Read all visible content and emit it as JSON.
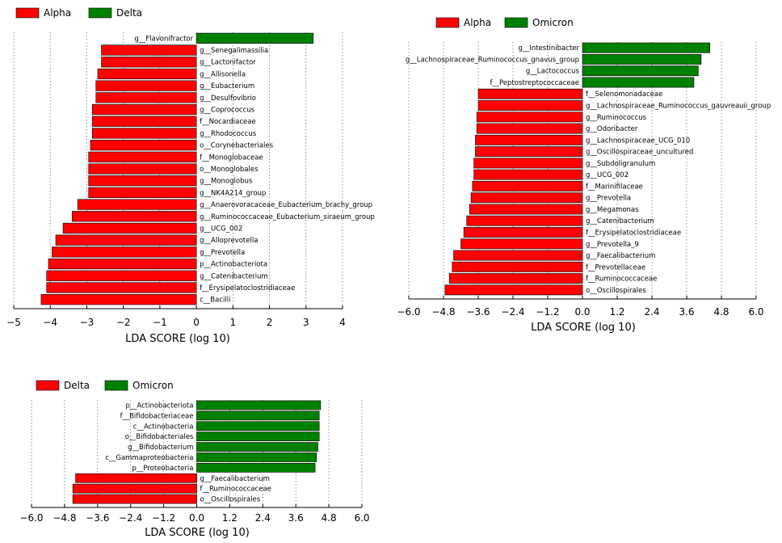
{
  "chart_data": [
    {
      "type": "bar",
      "orientation": "horizontal",
      "xlabel": "LDA SCORE (log 10)",
      "xlim": [
        -5,
        4
      ],
      "xticks": [
        "−5",
        "−4",
        "−3",
        "−2",
        "−1",
        "0",
        "1",
        "2",
        "3",
        "4"
      ],
      "tick_values": [
        -5,
        -4,
        -3,
        -2,
        -1,
        0,
        1,
        2,
        3,
        4
      ],
      "grid": true,
      "legend": [
        {
          "name": "Alpha",
          "color": "#ff0000"
        },
        {
          "name": "Delta",
          "color": "#008000"
        }
      ],
      "bars": [
        {
          "label": "g__Flavonifractor",
          "value": 3.2,
          "group": "Delta"
        },
        {
          "label": "g__Senegalimassilia",
          "value": -2.6,
          "group": "Alpha"
        },
        {
          "label": "g__Lactonifactor",
          "value": -2.6,
          "group": "Alpha"
        },
        {
          "label": "g__Allisonella",
          "value": -2.7,
          "group": "Alpha"
        },
        {
          "label": "g__Eubacterium",
          "value": -2.75,
          "group": "Alpha"
        },
        {
          "label": "g__Desulfovibrio",
          "value": -2.75,
          "group": "Alpha"
        },
        {
          "label": "g__Coprococcus",
          "value": -2.85,
          "group": "Alpha"
        },
        {
          "label": "f__Nocardiaceae",
          "value": -2.85,
          "group": "Alpha"
        },
        {
          "label": "g__Rhodococcus",
          "value": -2.85,
          "group": "Alpha"
        },
        {
          "label": "o__Corynebacteriales",
          "value": -2.9,
          "group": "Alpha"
        },
        {
          "label": "f__Monoglobaceae",
          "value": -2.95,
          "group": "Alpha"
        },
        {
          "label": "o__Monoglobales",
          "value": -2.95,
          "group": "Alpha"
        },
        {
          "label": "g__Monoglobus",
          "value": -2.95,
          "group": "Alpha"
        },
        {
          "label": "g__NK4A214_group",
          "value": -2.95,
          "group": "Alpha"
        },
        {
          "label": "g__Anaerovoracaceae_Eubacterium_brachy_group",
          "value": -3.25,
          "group": "Alpha"
        },
        {
          "label": "g__Ruminococcaceae_Eubacterium_siraeum_group",
          "value": -3.4,
          "group": "Alpha"
        },
        {
          "label": "g__UCG_002",
          "value": -3.65,
          "group": "Alpha"
        },
        {
          "label": "g__Alloprevotella",
          "value": -3.85,
          "group": "Alpha"
        },
        {
          "label": "g__Prevotella",
          "value": -3.95,
          "group": "Alpha"
        },
        {
          "label": "p__Actinobacteriota",
          "value": -4.05,
          "group": "Alpha"
        },
        {
          "label": "g__Catenibacterium",
          "value": -4.1,
          "group": "Alpha"
        },
        {
          "label": "f__Erysipelatoclostridiaceae",
          "value": -4.1,
          "group": "Alpha"
        },
        {
          "label": "c__Bacilli",
          "value": -4.25,
          "group": "Alpha"
        }
      ]
    },
    {
      "type": "bar",
      "orientation": "horizontal",
      "xlabel": "LDA SCORE (log 10)",
      "xlim": [
        -6.0,
        6.0
      ],
      "xticks": [
        "−6.0",
        "−4.8",
        "−3.6",
        "−2.4",
        "−1.2",
        "0.0",
        "1.2",
        "2.4",
        "3.6",
        "4.8",
        "6.0"
      ],
      "tick_values": [
        -6.0,
        -4.8,
        -3.6,
        -2.4,
        -1.2,
        0.0,
        1.2,
        2.4,
        3.6,
        4.8,
        6.0
      ],
      "grid": true,
      "legend": [
        {
          "name": "Alpha",
          "color": "#ff0000"
        },
        {
          "name": "Omicron",
          "color": "#008000"
        }
      ],
      "bars": [
        {
          "label": "g__Intestinibacter",
          "value": 4.4,
          "group": "Omicron"
        },
        {
          "label": "g__Lachnospiraceae_Ruminococcus_gnavus_group",
          "value": 4.1,
          "group": "Omicron"
        },
        {
          "label": "g__Lactococcus",
          "value": 4.0,
          "group": "Omicron"
        },
        {
          "label": "f__Peptostreptococcaceae",
          "value": 3.85,
          "group": "Omicron"
        },
        {
          "label": "f__Selenomonadaceae",
          "value": -3.6,
          "group": "Alpha"
        },
        {
          "label": "g__Lachnospiraceae_Ruminococcus_gauvreauii_group",
          "value": -3.6,
          "group": "Alpha"
        },
        {
          "label": "g__Ruminococcus",
          "value": -3.65,
          "group": "Alpha"
        },
        {
          "label": "g__Odoribacter",
          "value": -3.65,
          "group": "Alpha"
        },
        {
          "label": "g__Lachnospiraceae_UCG_010",
          "value": -3.7,
          "group": "Alpha"
        },
        {
          "label": "g__Oscillospiraceae_uncultured",
          "value": -3.7,
          "group": "Alpha"
        },
        {
          "label": "g__Subdoligranulum",
          "value": -3.75,
          "group": "Alpha"
        },
        {
          "label": "g__UCG_002",
          "value": -3.75,
          "group": "Alpha"
        },
        {
          "label": "f__Marinifilaceae",
          "value": -3.8,
          "group": "Alpha"
        },
        {
          "label": "g__Prevotella",
          "value": -3.85,
          "group": "Alpha"
        },
        {
          "label": "g__Megamonas",
          "value": -3.9,
          "group": "Alpha"
        },
        {
          "label": "g__Catenibacterium",
          "value": -4.0,
          "group": "Alpha"
        },
        {
          "label": "f__Erysipelatoclostridiaceae",
          "value": -4.1,
          "group": "Alpha"
        },
        {
          "label": "g__Prevotella_9",
          "value": -4.2,
          "group": "Alpha"
        },
        {
          "label": "g__Faecalibacterium",
          "value": -4.45,
          "group": "Alpha"
        },
        {
          "label": "f__Prevotellaceae",
          "value": -4.5,
          "group": "Alpha"
        },
        {
          "label": "f__Ruminococcaceae",
          "value": -4.6,
          "group": "Alpha"
        },
        {
          "label": "o__Oscillospirales",
          "value": -4.75,
          "group": "Alpha"
        }
      ]
    },
    {
      "type": "bar",
      "orientation": "horizontal",
      "xlabel": "LDA SCORE (log 10)",
      "xlim": [
        -6.0,
        6.0
      ],
      "xticks": [
        "−6.0",
        "−4.8",
        "−3.6",
        "−2.4",
        "−1.2",
        "0.0",
        "1.2",
        "2.4",
        "3.6",
        "4.8",
        "6.0"
      ],
      "tick_values": [
        -6.0,
        -4.8,
        -3.6,
        -2.4,
        -1.2,
        0.0,
        1.2,
        2.4,
        3.6,
        4.8,
        6.0
      ],
      "grid": true,
      "legend": [
        {
          "name": "Delta",
          "color": "#ff0000"
        },
        {
          "name": "Omicron",
          "color": "#008000"
        }
      ],
      "bars": [
        {
          "label": "p__Actinobacteriota",
          "value": 4.5,
          "group": "Omicron"
        },
        {
          "label": "f__Bifidobacteriaceae",
          "value": 4.45,
          "group": "Omicron"
        },
        {
          "label": "c__Actinobacteria",
          "value": 4.45,
          "group": "Omicron"
        },
        {
          "label": "o__Bifidobacteriales",
          "value": 4.45,
          "group": "Omicron"
        },
        {
          "label": "g__Bifidobacterium",
          "value": 4.4,
          "group": "Omicron"
        },
        {
          "label": "c__Gammaproteobacteria",
          "value": 4.35,
          "group": "Omicron"
        },
        {
          "label": "p__Proteobacteria",
          "value": 4.3,
          "group": "Omicron"
        },
        {
          "label": "g__Faecalibacterium",
          "value": -4.4,
          "group": "Delta"
        },
        {
          "label": "f__Ruminococcaceae",
          "value": -4.5,
          "group": "Delta"
        },
        {
          "label": "o__Oscillospirales",
          "value": -4.5,
          "group": "Delta"
        }
      ]
    }
  ]
}
